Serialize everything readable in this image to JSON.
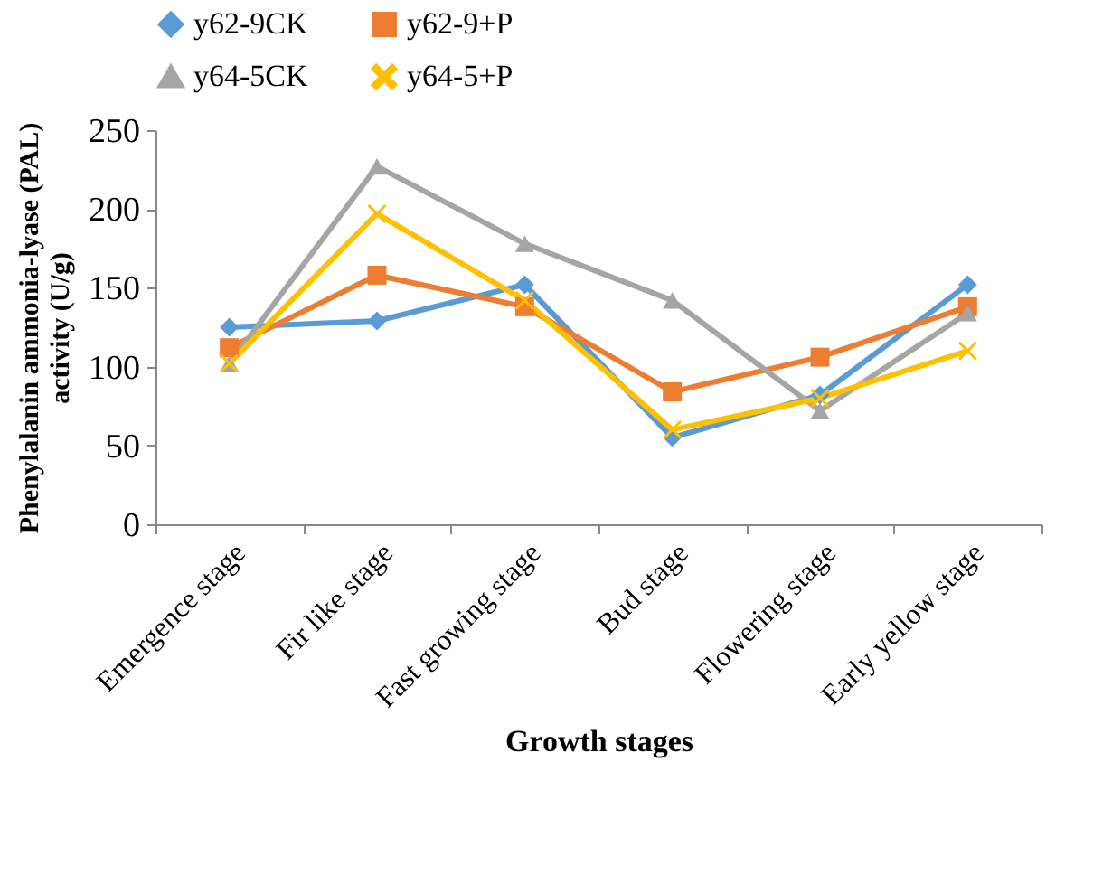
{
  "chart_data": {
    "type": "line",
    "xlabel": "Growth stages",
    "ylabel": "Phenylalanin ammonia-lyase (PAL) activity (U/g)",
    "categories": [
      "Emergence stage",
      "Fir like stage",
      "Fast growing stage",
      "Bud stage",
      "Flowering stage",
      "Early yellow stage"
    ],
    "ylim": [
      0,
      250
    ],
    "yticks": [
      0,
      50,
      100,
      150,
      200,
      250
    ],
    "grid": false,
    "legend": "top",
    "series": [
      {
        "name": "y62-9CK",
        "color": "#5b9bd5",
        "marker": "diamond",
        "values": [
          125,
          129,
          152,
          55,
          82,
          152
        ]
      },
      {
        "name": "y62-9+P",
        "color": "#ed7d31",
        "marker": "square",
        "values": [
          112,
          158,
          138,
          84,
          106,
          138
        ]
      },
      {
        "name": "y64-5CK",
        "color": "#a5a5a5",
        "marker": "triangle",
        "values": [
          102,
          227,
          178,
          142,
          72,
          134
        ]
      },
      {
        "name": "y64-5+P",
        "color": "#ffc000",
        "marker": "cross",
        "values": [
          102,
          197,
          142,
          60,
          80,
          110
        ]
      }
    ]
  }
}
